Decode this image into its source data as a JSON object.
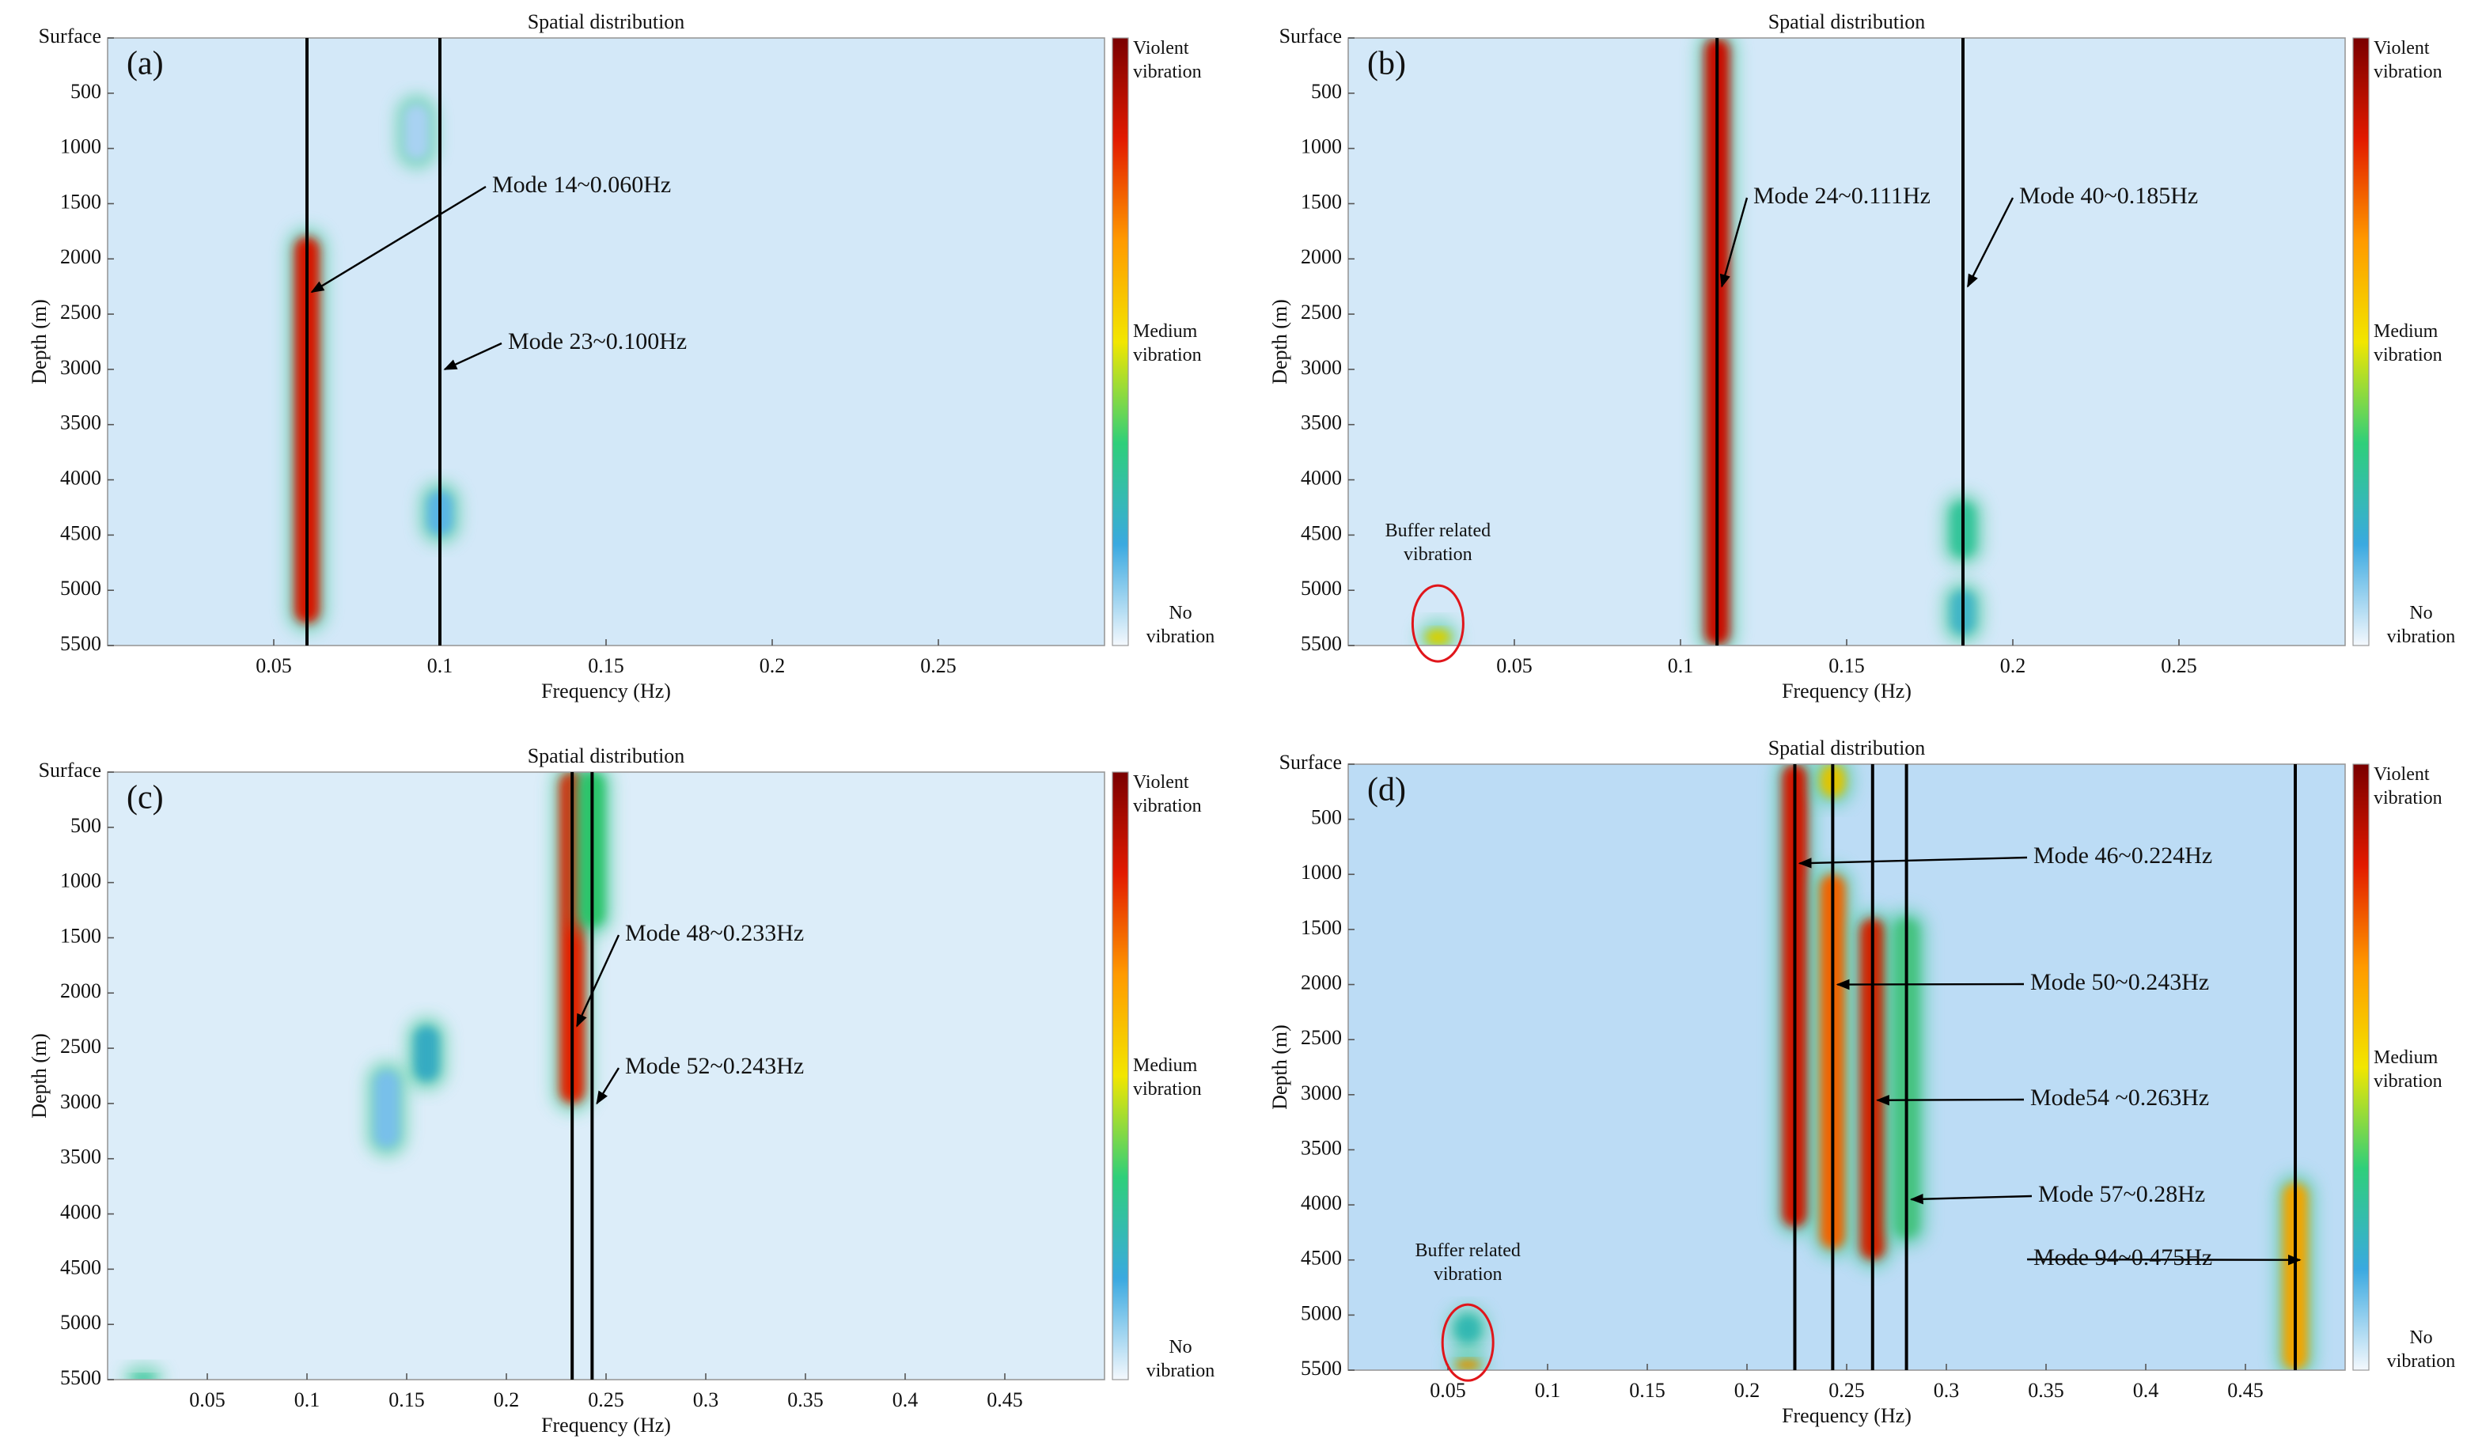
{
  "chart_data": [
    {
      "type": "heatmap",
      "panel": "(a)",
      "title": "Spatial distribution",
      "xlabel": "Frequency (Hz)",
      "ylabel": "Depth (m)",
      "xlim": [
        0,
        0.3
      ],
      "ylim": [
        0,
        5500
      ],
      "y_inverted": true,
      "xticks": [
        0.05,
        0.1,
        0.15,
        0.2,
        0.25
      ],
      "yticks": [
        {
          "value": 0,
          "label": "Surface"
        },
        500,
        1000,
        1500,
        2000,
        2500,
        3000,
        3500,
        4000,
        4500,
        5000,
        5500
      ],
      "background": "#d3e8f8",
      "colorbar": {
        "colors": [
          "#7a0000",
          "#e21a00",
          "#ff9a00",
          "#f2e600",
          "#2fcf7a",
          "#3aa9e0",
          "#f4f8fd"
        ],
        "labels": [
          "Violent vibration",
          "Medium vibration",
          "No vibration"
        ]
      },
      "hotspots": [
        {
          "x": 0.06,
          "y": [
            1800,
            5300
          ],
          "color": "#d41400"
        },
        {
          "x": 0.1,
          "y": [
            4100,
            4500
          ],
          "color": "#58b4e4"
        },
        {
          "x": 0.093,
          "y": [
            600,
            1100
          ],
          "color": "#a8d2f2"
        }
      ],
      "modes": [
        {
          "label": "Mode 14~0.060Hz",
          "x": 0.06,
          "y": 2300
        },
        {
          "label": "Mode 23~0.100Hz",
          "x": 0.1,
          "y": 3000
        }
      ]
    },
    {
      "type": "heatmap",
      "panel": "(b)",
      "title": "Spatial distribution",
      "xlabel": "Frequency (Hz)",
      "ylabel": "Depth (m)",
      "xlim": [
        0,
        0.3
      ],
      "ylim": [
        0,
        5500
      ],
      "y_inverted": true,
      "xticks": [
        0.05,
        0.1,
        0.15,
        0.2,
        0.25
      ],
      "yticks": [
        {
          "value": 0,
          "label": "Surface"
        },
        500,
        1000,
        1500,
        2000,
        2500,
        3000,
        3500,
        4000,
        4500,
        5000,
        5500
      ],
      "background": "#d3e8f8",
      "colorbar": {
        "colors": [
          "#7a0000",
          "#e21a00",
          "#ff9a00",
          "#f2e600",
          "#2fcf7a",
          "#3aa9e0",
          "#f4f8fd"
        ],
        "labels": [
          "Violent vibration",
          "Medium vibration",
          "No vibration"
        ]
      },
      "hotspots": [
        {
          "x": 0.111,
          "y": [
            0,
            5500
          ],
          "color": "#c80a00"
        },
        {
          "x": 0.185,
          "y": [
            4200,
            4700
          ],
          "color": "#33c49a"
        },
        {
          "x": 0.185,
          "y": [
            5000,
            5400
          ],
          "color": "#3fb5c6"
        },
        {
          "x": 0.027,
          "y": [
            5350,
            5500
          ],
          "color": "#d8d000"
        }
      ],
      "modes": [
        {
          "label": "Mode 24~0.111Hz",
          "x": 0.111,
          "y": 2250
        },
        {
          "label": "Mode 40~0.185Hz",
          "x": 0.185,
          "y": 2250
        }
      ],
      "buffer": {
        "label": "Buffer related vibration",
        "x": 0.027,
        "y": 5300
      }
    },
    {
      "type": "heatmap",
      "panel": "(c)",
      "title": "Spatial distribution",
      "xlabel": "Frequency (Hz)",
      "ylabel": "Depth (m)",
      "xlim": [
        0,
        0.5
      ],
      "ylim": [
        0,
        5500
      ],
      "y_inverted": true,
      "xticks": [
        0.05,
        0.1,
        0.15,
        0.2,
        0.25,
        0.3,
        0.35,
        0.4,
        0.45
      ],
      "yticks": [
        {
          "value": 0,
          "label": "Surface"
        },
        500,
        1000,
        1500,
        2000,
        2500,
        3000,
        3500,
        4000,
        4500,
        5000,
        5500
      ],
      "background": "#dcedf9",
      "colorbar": {
        "colors": [
          "#7a0000",
          "#e21a00",
          "#ff9a00",
          "#f2e600",
          "#2fcf7a",
          "#3aa9e0",
          "#f4f8fd"
        ],
        "labels": [
          "Violent vibration",
          "Medium vibration",
          "No vibration"
        ]
      },
      "hotspots": [
        {
          "x": 0.233,
          "y": [
            0,
            3000
          ],
          "color": "#e02200"
        },
        {
          "x": 0.243,
          "y": [
            0,
            1400
          ],
          "color": "#2cc46a"
        },
        {
          "x": 0.16,
          "y": [
            2300,
            2800
          ],
          "color": "#36abc2"
        },
        {
          "x": 0.14,
          "y": [
            2700,
            3400
          ],
          "color": "#78c0ea"
        },
        {
          "x": 0.018,
          "y": [
            5450,
            5500
          ],
          "color": "#2fc49a"
        }
      ],
      "modes": [
        {
          "label": "Mode 48~0.233Hz",
          "x": 0.233,
          "y": 2300
        },
        {
          "label": "Mode 52~0.243Hz",
          "x": 0.243,
          "y": 3000
        }
      ]
    },
    {
      "type": "heatmap",
      "panel": "(d)",
      "title": "Spatial distribution",
      "xlabel": "Frequency (Hz)",
      "ylabel": "Depth (m)",
      "xlim": [
        0,
        0.5
      ],
      "ylim": [
        0,
        5500
      ],
      "y_inverted": true,
      "xticks": [
        0.05,
        0.1,
        0.15,
        0.2,
        0.25,
        0.3,
        0.35,
        0.4,
        0.45
      ],
      "yticks": [
        {
          "value": 0,
          "label": "Surface"
        },
        500,
        1000,
        1500,
        2000,
        2500,
        3000,
        3500,
        4000,
        4500,
        5000,
        5500
      ],
      "background": "#bcdcf5",
      "colorbar": {
        "colors": [
          "#7a0000",
          "#e21a00",
          "#ff9a00",
          "#f2e600",
          "#2fcf7a",
          "#3aa9e0",
          "#f4f8fd"
        ],
        "labels": [
          "Violent vibration",
          "Medium vibration",
          "No vibration"
        ]
      },
      "hotspots": [
        {
          "x": 0.224,
          "y": [
            0,
            4200
          ],
          "color": "#d01200"
        },
        {
          "x": 0.243,
          "y": [
            1000,
            4400
          ],
          "color": "#f06400"
        },
        {
          "x": 0.243,
          "y": [
            0,
            300
          ],
          "color": "#e0c400"
        },
        {
          "x": 0.263,
          "y": [
            1400,
            4500
          ],
          "color": "#d02400"
        },
        {
          "x": 0.28,
          "y": [
            1400,
            4300
          ],
          "color": "#45c280"
        },
        {
          "x": 0.475,
          "y": [
            3800,
            5500
          ],
          "color": "#f0a400"
        },
        {
          "x": 0.06,
          "y": [
            5400,
            5500
          ],
          "color": "#e09400"
        },
        {
          "x": 0.06,
          "y": [
            5000,
            5250
          ],
          "color": "#33b8b2"
        }
      ],
      "modes": [
        {
          "label": "Mode 46~0.224Hz",
          "x": 0.224,
          "y": 900
        },
        {
          "label": "Mode 50~0.243Hz",
          "x": 0.243,
          "y": 2000
        },
        {
          "label": "Mode54 ~0.263Hz",
          "x": 0.263,
          "y": 3050
        },
        {
          "label": "Mode 57~0.28Hz",
          "x": 0.28,
          "y": 3950
        },
        {
          "label": "Mode 94~0.475Hz",
          "x": 0.475,
          "y": 4500
        }
      ],
      "buffer": {
        "label": "Buffer related vibration",
        "x": 0.06,
        "y": 5250
      }
    }
  ]
}
